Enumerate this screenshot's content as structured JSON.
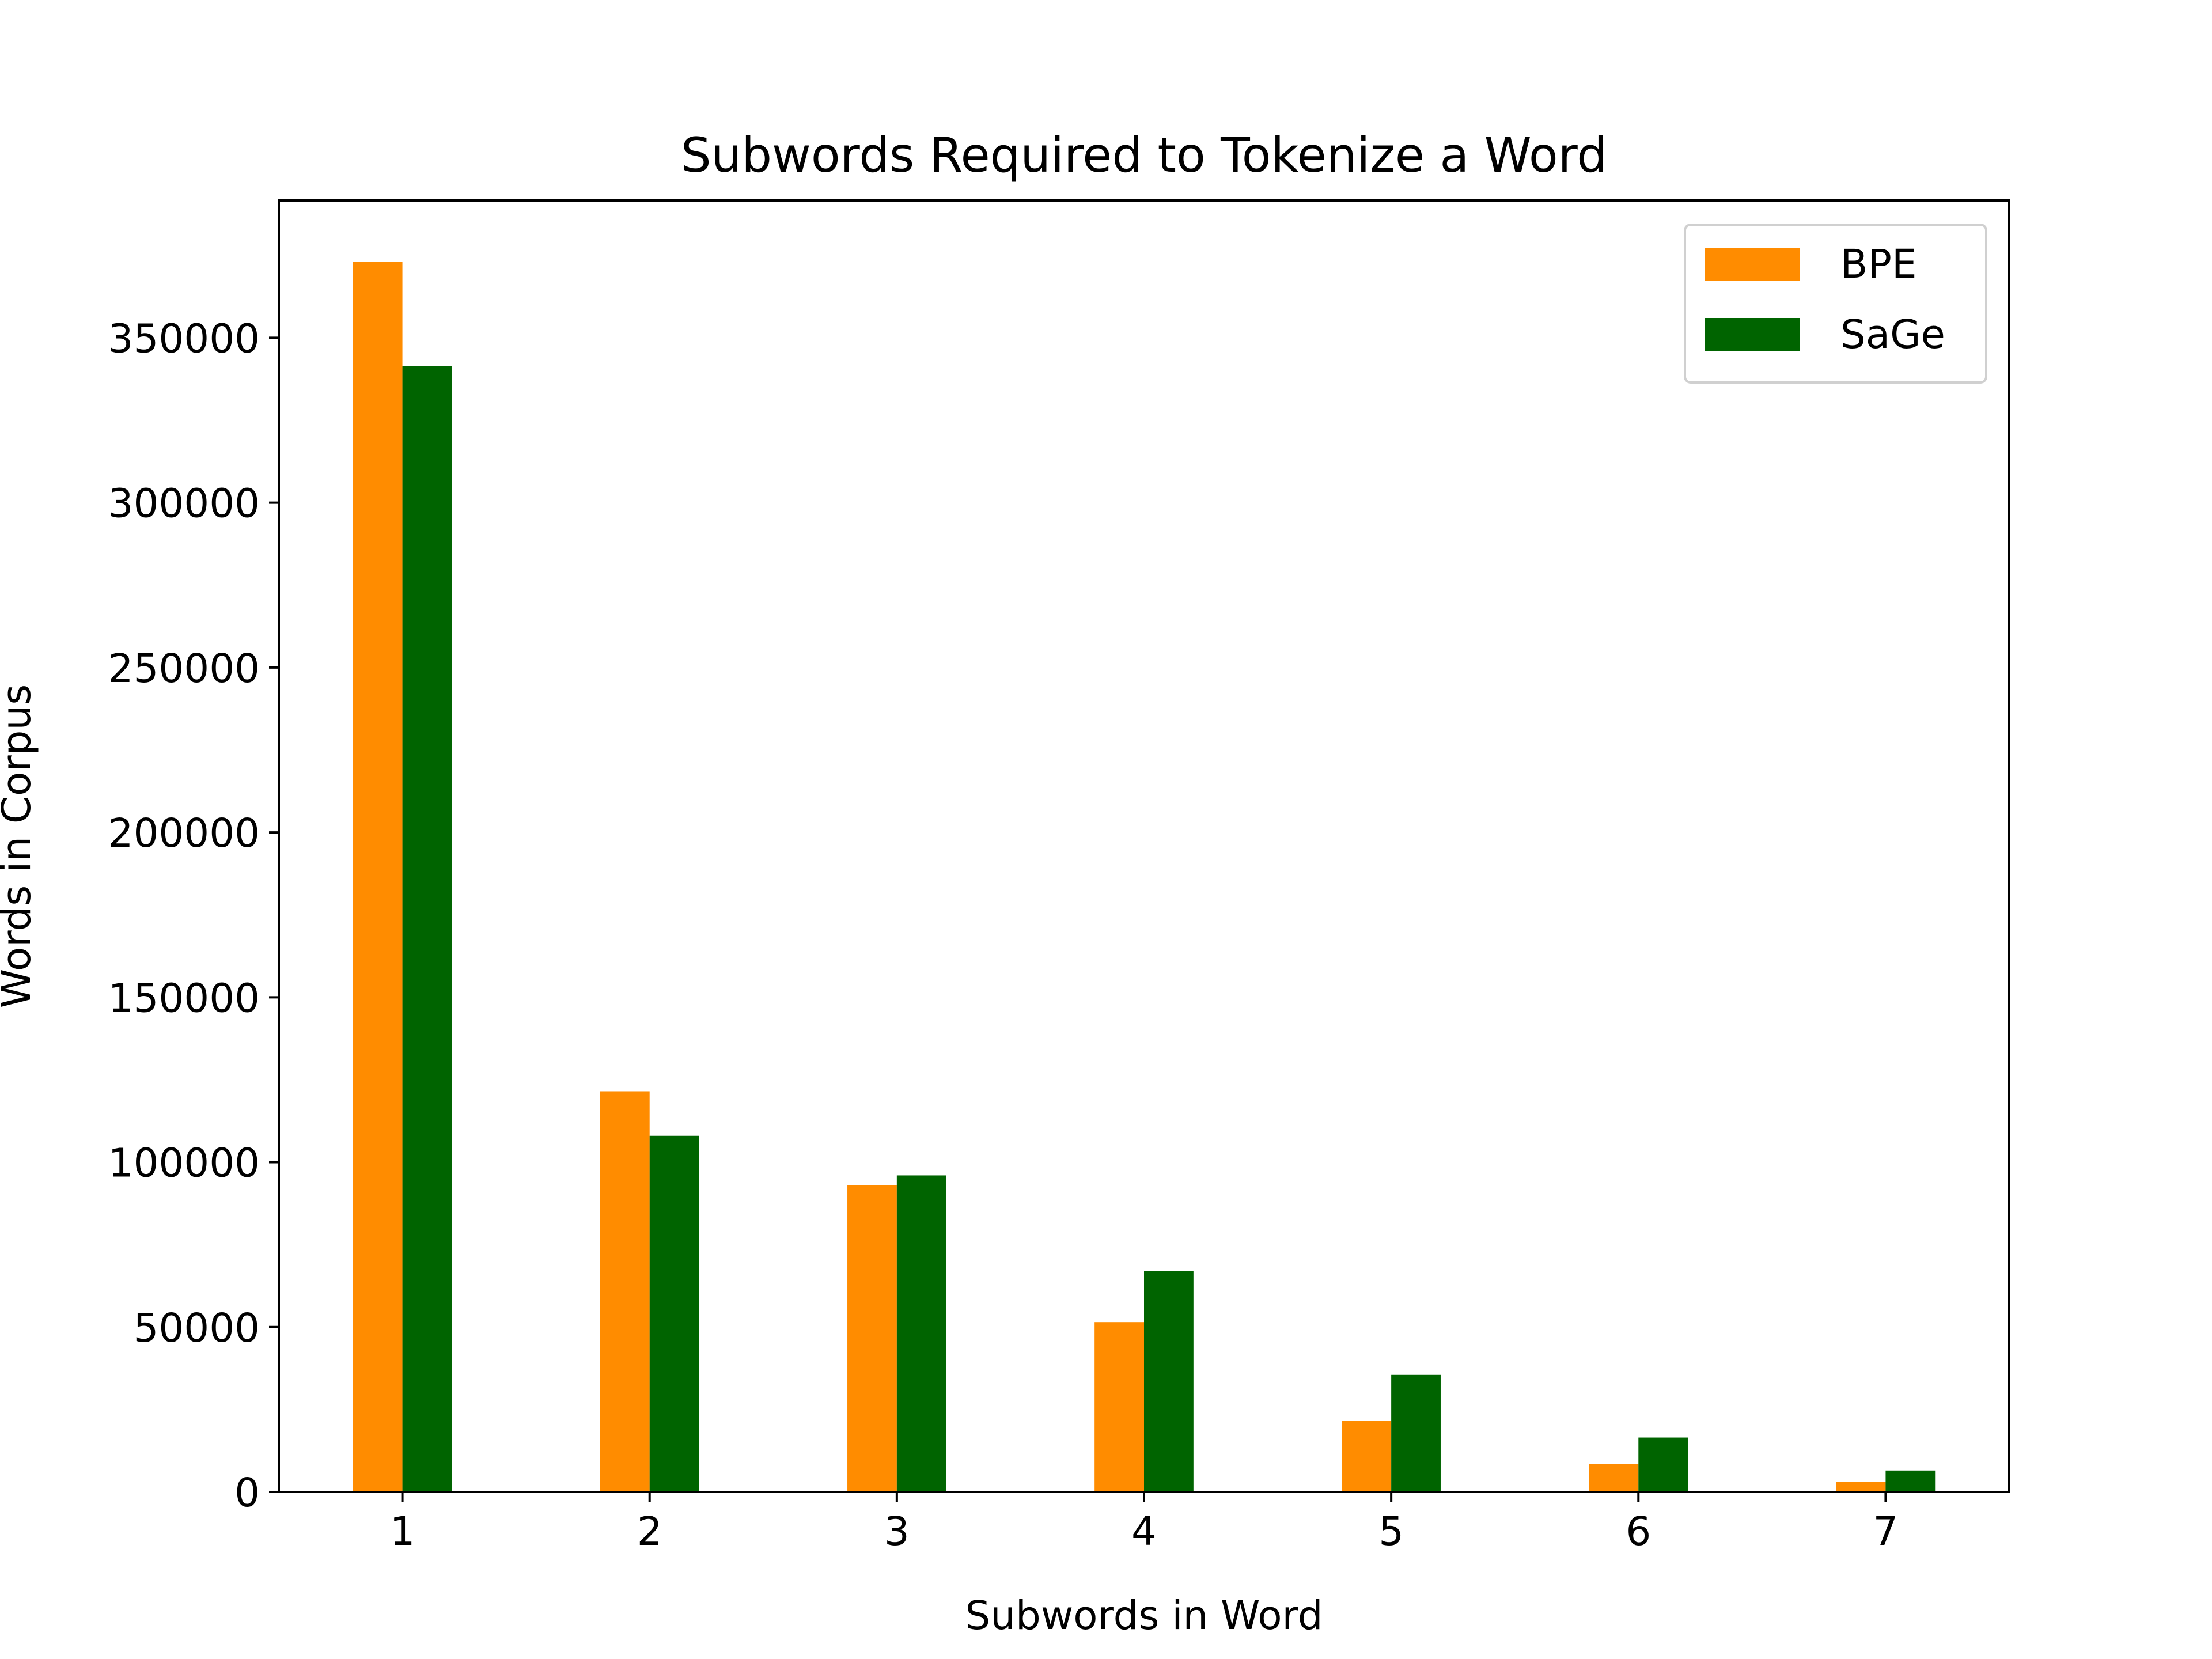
{
  "chart_data": {
    "type": "bar",
    "title": "Subwords Required to Tokenize a Word",
    "xlabel": "Subwords in Word",
    "ylabel": "Words in Corpus",
    "categories": [
      "1",
      "2",
      "3",
      "4",
      "5",
      "6",
      "7"
    ],
    "series": [
      {
        "name": "BPE",
        "color": "#ff8c00",
        "values": [
          373000,
          121500,
          93000,
          51500,
          21500,
          8500,
          3000
        ]
      },
      {
        "name": "SaGe",
        "color": "#006400",
        "values": [
          341500,
          108000,
          96000,
          67000,
          35500,
          16500,
          6500
        ]
      }
    ],
    "yticks": [
      0,
      50000,
      100000,
      150000,
      200000,
      250000,
      300000,
      350000
    ],
    "ylim": [
      0,
      391650
    ],
    "grid": false,
    "legend": "top-right"
  }
}
